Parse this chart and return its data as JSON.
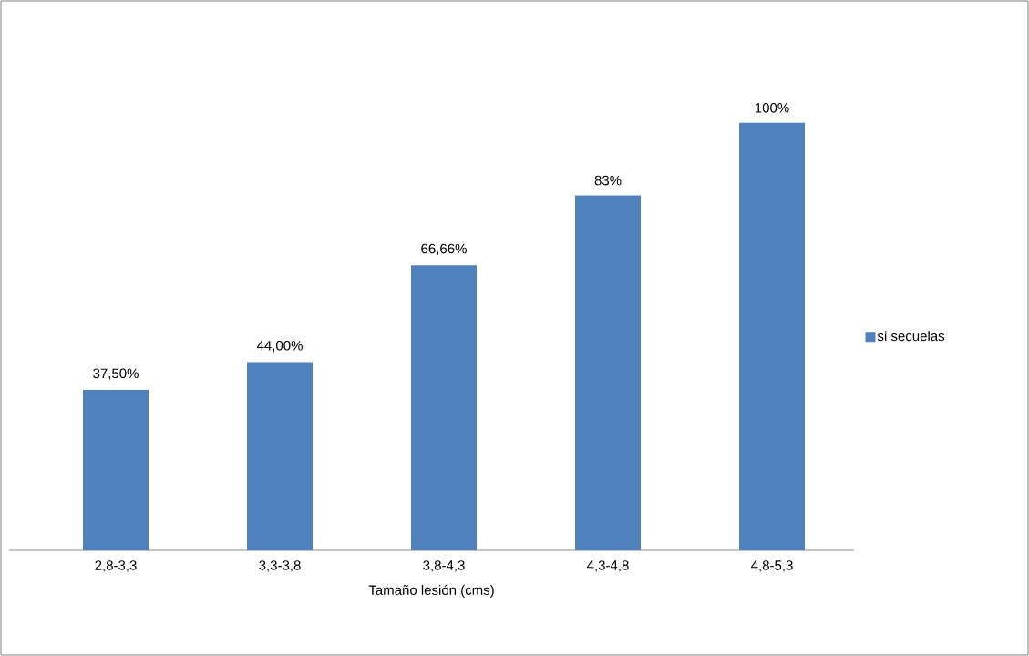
{
  "chart_data": {
    "type": "bar",
    "categories": [
      "2,8-3,3",
      "3,3-3,8",
      "3,8-4,3",
      "4,3-4,8",
      "4,8-5,3"
    ],
    "xlabel": "Tamaño lesión (cms)",
    "series": [
      {
        "name": "si secuelas",
        "color": "#4f81bd",
        "values": [
          37.5,
          44,
          66.66,
          83,
          100
        ],
        "value_labels": [
          "37,50%",
          "44,00%",
          "66,66%",
          "83%",
          "100%"
        ]
      }
    ],
    "legend": "right"
  }
}
